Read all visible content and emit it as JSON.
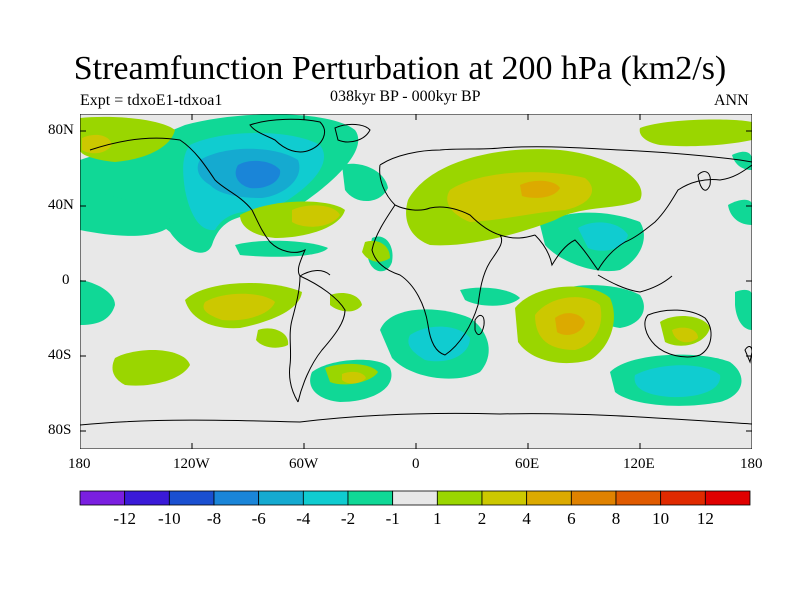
{
  "header": {
    "title": "Streamfunction Perturbation at 200 hPa (km2/s)",
    "left_label": "Expt = tdxoE1-tdxoa1",
    "center_label": "038kyr BP - 000kyr BP",
    "right_label": "ANN"
  },
  "axes": {
    "lat_ticks": [
      "80N",
      "40N",
      "0",
      "40S",
      "80S"
    ],
    "lon_ticks": [
      "180",
      "120W",
      "60W",
      "0",
      "60E",
      "120E",
      "180"
    ]
  },
  "colorbar": {
    "colors": [
      "#7a1fe0",
      "#3a1ad8",
      "#1a4fd0",
      "#1a85d8",
      "#15aad0",
      "#10ccd0",
      "#10d896",
      "#e8e8e8",
      "#9ad600",
      "#ccc800",
      "#dcaa00",
      "#e08200",
      "#e05a00",
      "#e02a00",
      "#e00000"
    ],
    "labels": [
      "-12",
      "-10",
      "-8",
      "-6",
      "-4",
      "-2",
      "-1",
      "1",
      "2",
      "4",
      "6",
      "8",
      "10",
      "12"
    ]
  },
  "map_colors": {
    "background": "#e8e8e8",
    "neg1": "#10d896",
    "neg2": "#10ccd0",
    "neg3": "#15aad0",
    "neg4": "#1a85d8",
    "pos1": "#9ad600",
    "pos2": "#ccc800",
    "pos3": "#dcaa00"
  }
}
